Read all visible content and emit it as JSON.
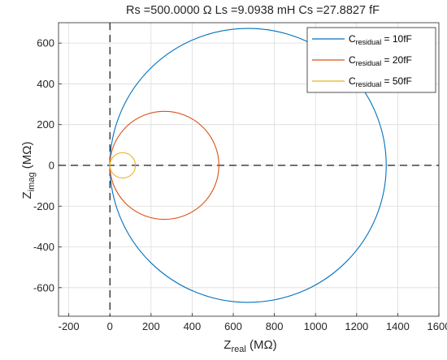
{
  "chart_data": {
    "type": "line",
    "title": "Rs =500.0000 Ω    Ls =9.0938 mH    Cs =27.8827 fF",
    "xlabel": {
      "main": "Z",
      "sub": "real",
      "unit": " (MΩ)"
    },
    "ylabel": {
      "main": "Z",
      "sub": "imag",
      "unit": " (MΩ)"
    },
    "xlim": [
      -250,
      1600
    ],
    "ylim": [
      -740,
      700
    ],
    "xticks": [
      -200,
      0,
      200,
      400,
      600,
      800,
      1000,
      1200,
      1400,
      1600
    ],
    "yticks": [
      -600,
      -400,
      -200,
      0,
      200,
      400,
      600
    ],
    "grid": true,
    "legend_position": "top-right",
    "reference_lines": {
      "x": 0,
      "y": 0,
      "style": "dashed",
      "color": "#000000"
    },
    "series": [
      {
        "name_main": "C",
        "name_sub": "residual",
        "name_suffix": " = 10fF",
        "color": "#0072BD",
        "center": [
          672,
          0
        ],
        "radius": 672
      },
      {
        "name_main": "C",
        "name_sub": "residual",
        "name_suffix": " = 20fF",
        "color": "#D95319",
        "center": [
          265,
          0
        ],
        "radius": 265
      },
      {
        "name_main": "C",
        "name_sub": "residual",
        "name_suffix": " = 50fF",
        "color": "#EDB120",
        "center": [
          62,
          0
        ],
        "radius": 62
      }
    ]
  }
}
